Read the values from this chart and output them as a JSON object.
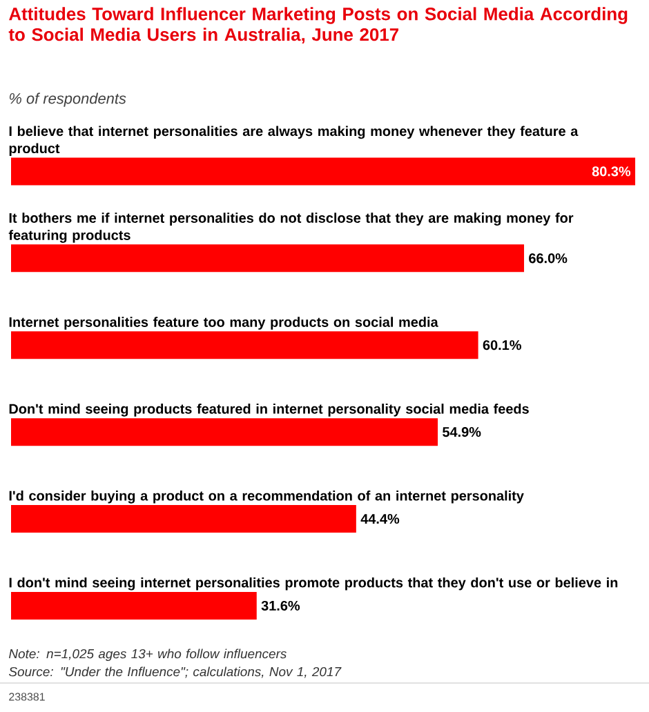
{
  "chart_data": {
    "type": "bar",
    "orientation": "horizontal",
    "title": "Attitudes Toward Influencer Marketing Posts on Social Media According to Social Media Users in Australia, June 2017",
    "subtitle": "% of respondents",
    "categories": [
      "I believe that internet personalities are always making money whenever they feature a product",
      "It bothers me if internet personalities do not disclose that they are making money for featuring products",
      "Internet personalities feature too many products on social media",
      "Don't mind seeing products featured in internet personality social media feeds",
      "I'd consider buying a product on a recommendation of an internet personality",
      "I don't mind seeing internet personalities promote products that they don't use or believe in"
    ],
    "values": [
      80.3,
      66.0,
      60.1,
      54.9,
      44.4,
      31.6
    ],
    "value_labels": [
      "80.3%",
      "66.0%",
      "60.1%",
      "54.9%",
      "44.4%",
      "31.6%"
    ],
    "color": "#ff0000",
    "annotations": [
      "Note: n=1,025 ages 13+ who follow influencers",
      "Source: \"Under the Influence\"; calculations, Nov 1, 2017",
      "238381"
    ]
  }
}
